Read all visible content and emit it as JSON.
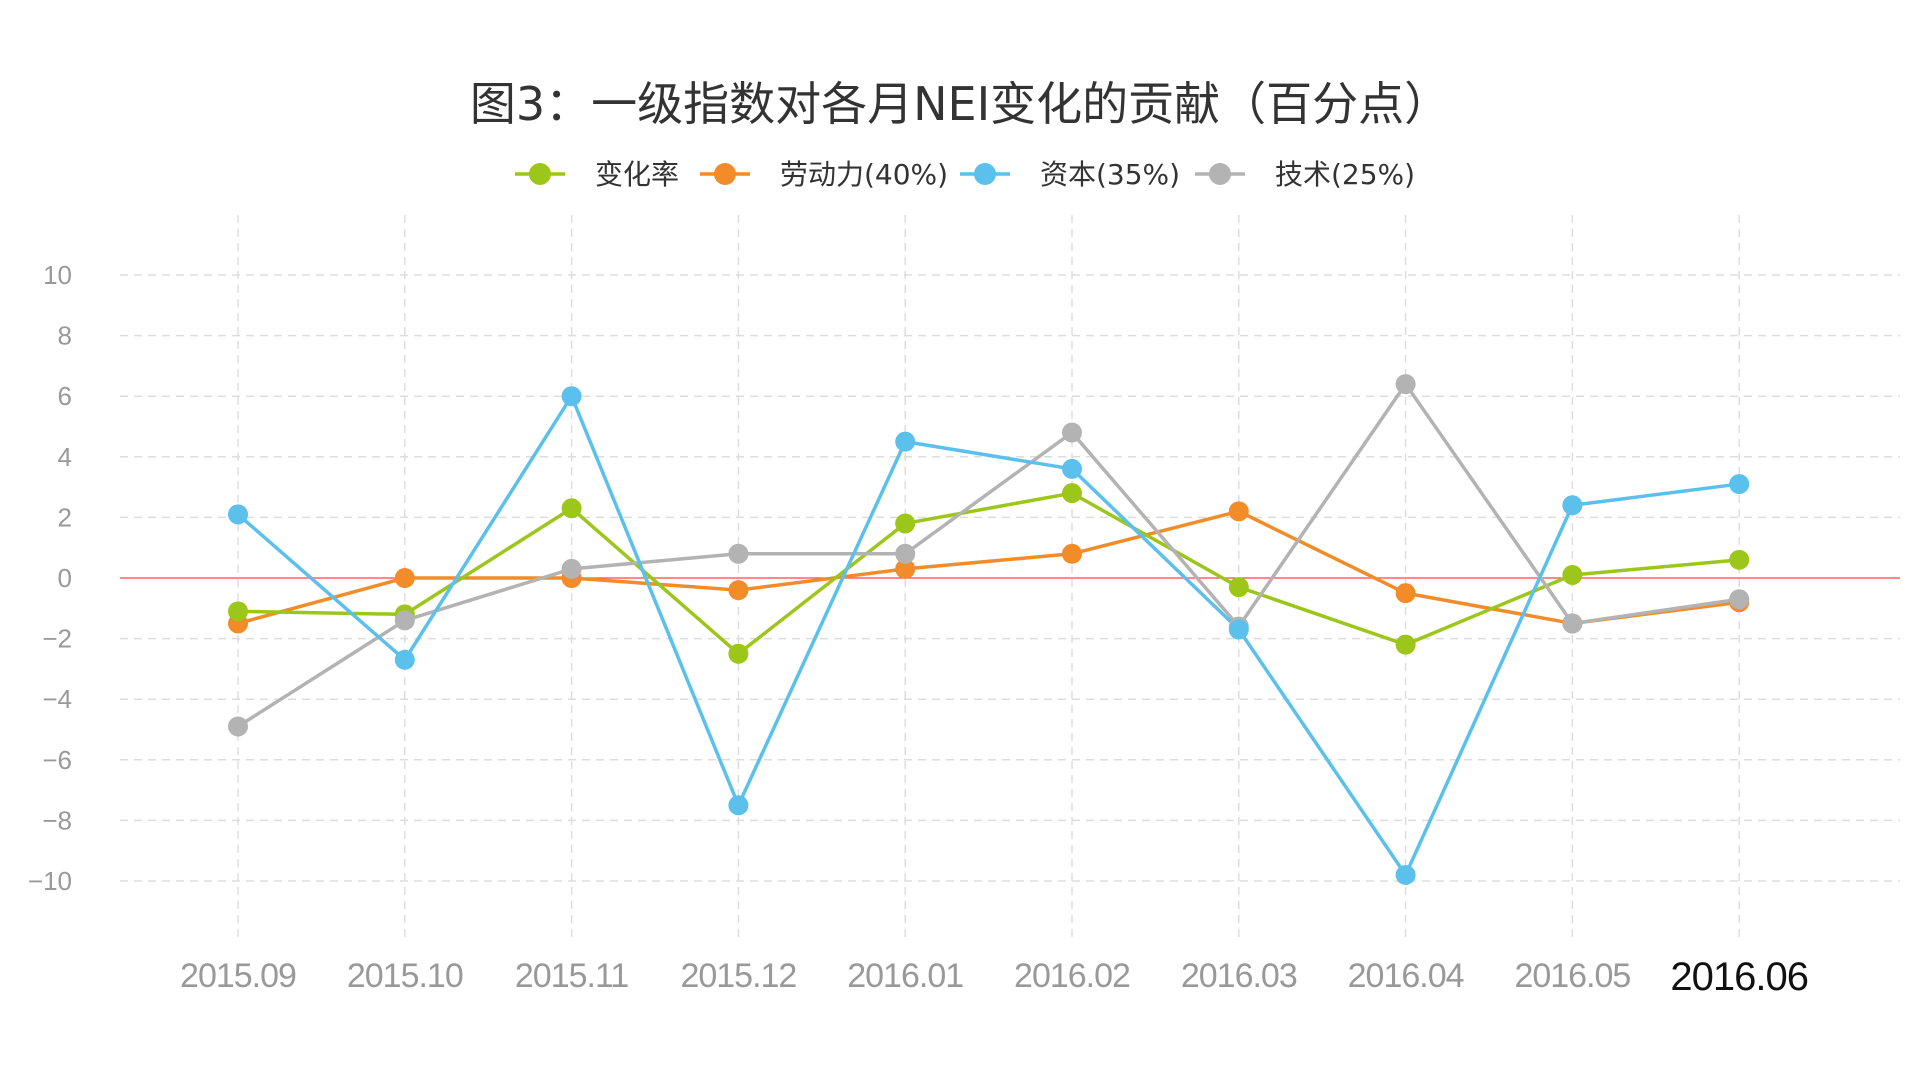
{
  "chart_data": {
    "type": "line",
    "title": "图3：一级指数对各月NEI变化的贡献（百分点）",
    "categories": [
      "2015.09",
      "2015.10",
      "2015.11",
      "2015.12",
      "2016.01",
      "2016.02",
      "2016.03",
      "2016.04",
      "2016.05",
      "2016.06"
    ],
    "highlight_category": "2016.06",
    "ylim": [
      -12,
      12
    ],
    "yticks": [
      10,
      8,
      6,
      4,
      2,
      0,
      -2,
      -4,
      -6,
      -8,
      -10
    ],
    "ytick_labels": [
      "10",
      "8",
      "6",
      "4",
      "2",
      "0",
      "−2",
      "−4",
      "−6",
      "−8",
      "−10"
    ],
    "grid": true,
    "legend_position": "top-center",
    "series": [
      {
        "name": "变化率",
        "color": "#9dc61b",
        "values": [
          -1.1,
          -1.2,
          2.3,
          -2.5,
          1.8,
          2.8,
          -0.3,
          -2.2,
          0.1,
          0.6
        ]
      },
      {
        "name": "劳动力(40%)",
        "color": "#f28c28",
        "values": [
          -1.5,
          0.0,
          0.0,
          -0.4,
          0.3,
          0.8,
          2.2,
          -0.5,
          -1.5,
          -0.8
        ]
      },
      {
        "name": "资本(35%)",
        "color": "#5bc0ec",
        "values": [
          2.1,
          -2.7,
          6.0,
          -7.5,
          4.5,
          3.6,
          -1.7,
          -9.8,
          2.4,
          3.1
        ]
      },
      {
        "name": "技术(25%)",
        "color": "#b3b3b3",
        "values": [
          -4.9,
          -1.4,
          0.3,
          0.8,
          0.8,
          4.8,
          -1.6,
          6.4,
          -1.5,
          -0.7
        ]
      }
    ]
  }
}
